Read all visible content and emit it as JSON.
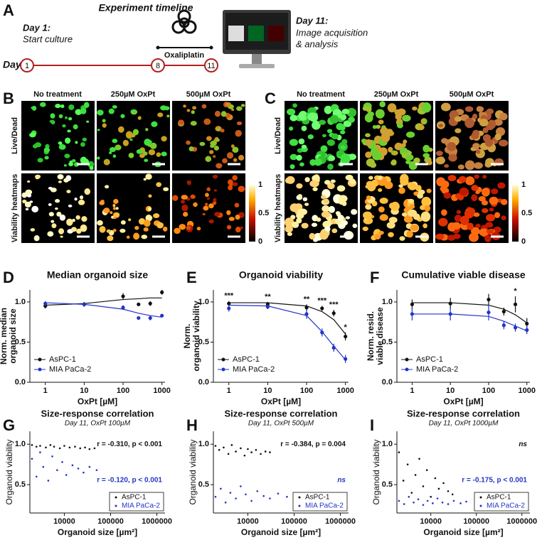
{
  "panel_labels": [
    "A",
    "B",
    "C",
    "D",
    "E",
    "F",
    "G",
    "H",
    "I"
  ],
  "timeline": {
    "title": "Experiment timeline",
    "day_label": "Day",
    "start_heading": "Day 1:",
    "start_text": "Start culture",
    "end_heading": "Day 11:",
    "end_text": [
      "Image acquisition",
      "& analysis"
    ],
    "days": [
      1,
      8,
      11
    ],
    "treatment": "Oxaliplatin"
  },
  "microscopy": [
    {
      "columns": [
        "No treatment",
        "250µM OxPt",
        "500µM OxPt"
      ],
      "rows": [
        "Live/Dead",
        "Viability heatmaps"
      ],
      "colorbar_ticks": [
        0,
        0.5,
        1
      ]
    },
    {
      "columns": [
        "No treatment",
        "250µM OxPt",
        "500µM OxPt"
      ],
      "rows": [
        "Live/Dead",
        "Viability heatmaps"
      ],
      "colorbar_ticks": [
        0,
        0.5,
        1
      ]
    }
  ],
  "chart_data": [
    {
      "type": "dose-response",
      "title": "Median organoid size",
      "xlabel": "OxPt [µM]",
      "ylabel": [
        "Norm. median",
        "organoid size"
      ],
      "x": [
        1,
        10,
        100,
        250,
        500,
        1000
      ],
      "xlog": true,
      "xlim": [
        0.4,
        1200
      ],
      "xticks": [
        1,
        10,
        100,
        1000
      ],
      "ylim": [
        0,
        1.15
      ],
      "yticks": [
        {
          "value": 0,
          "label": "0.0"
        },
        {
          "value": 0.5,
          "label": "0.5"
        },
        {
          "value": 1,
          "label": "1.0"
        }
      ],
      "legend": "lower left",
      "series": [
        {
          "name": "AsPC-1",
          "color": "#111111",
          "values": [
            0.95,
            0.97,
            1.07,
            0.97,
            0.98,
            1.12
          ],
          "errors": [
            0.03,
            0.03,
            0.04,
            0.02,
            0.03,
            0.03
          ],
          "fit": [
            0.96,
            0.98,
            1.03,
            1.04,
            1.05,
            1.05
          ]
        },
        {
          "name": "MIA PaCa-2",
          "color": "#2134c8",
          "values": [
            0.98,
            0.97,
            0.93,
            0.8,
            0.8,
            0.83
          ],
          "errors": [
            0.03,
            0.03,
            0.03,
            0.02,
            0.03,
            0.02
          ],
          "fit": [
            0.99,
            0.97,
            0.91,
            0.86,
            0.83,
            0.81
          ]
        }
      ],
      "significance": []
    },
    {
      "type": "dose-response",
      "title": "Organoid viability",
      "xlabel": "OxPt [µM]",
      "ylabel": [
        "Norm.",
        "organoid viability"
      ],
      "x": [
        1,
        10,
        100,
        250,
        500,
        1000
      ],
      "xlog": true,
      "xlim": [
        0.4,
        1200
      ],
      "xticks": [
        1,
        10,
        100,
        1000
      ],
      "ylim": [
        0,
        1.15
      ],
      "yticks": [
        {
          "value": 0,
          "label": "0.0"
        },
        {
          "value": 0.5,
          "label": "0.5"
        },
        {
          "value": 1,
          "label": "1.0"
        }
      ],
      "legend": "lower left",
      "series": [
        {
          "name": "AsPC-1",
          "color": "#111111",
          "values": [
            0.98,
            0.97,
            0.93,
            0.92,
            0.86,
            0.57
          ],
          "errors": [
            0.03,
            0.03,
            0.04,
            0.03,
            0.04,
            0.05
          ],
          "fit": [
            0.99,
            0.99,
            0.95,
            0.88,
            0.78,
            0.6
          ]
        },
        {
          "name": "MIA PaCa-2",
          "color": "#2134c8",
          "values": [
            0.92,
            0.94,
            0.85,
            0.62,
            0.43,
            0.29
          ],
          "errors": [
            0.04,
            0.03,
            0.06,
            0.05,
            0.05,
            0.05
          ],
          "fit": [
            0.96,
            0.95,
            0.83,
            0.63,
            0.45,
            0.28
          ]
        }
      ],
      "significance": [
        {
          "x": 1,
          "label": "***"
        },
        {
          "x": 10,
          "label": "**"
        },
        {
          "x": 100,
          "label": "**"
        },
        {
          "x": 250,
          "label": "***"
        },
        {
          "x": 500,
          "label": "***"
        },
        {
          "x": 1000,
          "label": "*"
        }
      ]
    },
    {
      "type": "dose-response",
      "title": "Cumulative viable disease",
      "xlabel": "OxPt [µM]",
      "ylabel": [
        "Norm. resid.",
        "viable disease"
      ],
      "x": [
        1,
        10,
        100,
        250,
        500,
        1000
      ],
      "xlog": true,
      "xlim": [
        0.4,
        1200
      ],
      "xticks": [
        1,
        10,
        100,
        1000
      ],
      "ylim": [
        0,
        1.15
      ],
      "yticks": [
        {
          "value": 0,
          "label": "0.0"
        },
        {
          "value": 0.5,
          "label": "0.5"
        },
        {
          "value": 1,
          "label": "1.0"
        }
      ],
      "legend": "lower left",
      "series": [
        {
          "name": "AsPC-1",
          "color": "#111111",
          "values": [
            0.97,
            0.98,
            1.03,
            0.88,
            0.97,
            0.73
          ],
          "errors": [
            0.06,
            0.07,
            0.07,
            0.05,
            0.1,
            0.07
          ],
          "fit": [
            0.99,
            0.99,
            0.96,
            0.91,
            0.84,
            0.74
          ]
        },
        {
          "name": "MIA PaCa-2",
          "color": "#2134c8",
          "values": [
            0.85,
            0.85,
            0.87,
            0.71,
            0.68,
            0.65
          ],
          "errors": [
            0.08,
            0.08,
            0.1,
            0.05,
            0.05,
            0.05
          ],
          "fit": [
            0.85,
            0.85,
            0.82,
            0.76,
            0.7,
            0.64
          ]
        }
      ],
      "significance": [
        {
          "x": 500,
          "label": "*"
        }
      ]
    },
    {
      "type": "scatter",
      "title": "Size-response correlation",
      "subtitle": "Day 11, OxPt 100µM",
      "xlabel": "Organoid size [µm²]",
      "ylabel": "Organoid viability",
      "xlog": true,
      "xlim": [
        1800,
        1500000
      ],
      "xticks": [
        10000,
        100000,
        1000000
      ],
      "ylim": [
        0.15,
        1.16
      ],
      "yticks": [
        0.5,
        {
          "value": 1,
          "label": "1.0"
        }
      ],
      "legend": "lower right",
      "series": [
        {
          "name": "AsPC-1",
          "color": "#111111",
          "x": [
            2000,
            2500,
            3000,
            4000,
            5000,
            6000,
            8000,
            10000,
            13000,
            17000,
            22000,
            28000,
            35000,
            45000
          ],
          "values": [
            0.99,
            0.97,
            0.98,
            0.96,
            0.99,
            0.97,
            0.95,
            0.98,
            0.96,
            0.97,
            0.95,
            0.96,
            0.94,
            0.95
          ]
        },
        {
          "name": "MIA PaCa-2",
          "color": "#2134c8",
          "x": [
            2000,
            2500,
            3000,
            3500,
            4500,
            5500,
            7000,
            9000,
            11000,
            15000,
            20000,
            26000,
            35000,
            50000
          ],
          "values": [
            0.82,
            0.6,
            0.9,
            0.72,
            0.55,
            0.85,
            0.68,
            0.78,
            0.62,
            0.74,
            0.7,
            0.65,
            0.72,
            0.68
          ]
        }
      ],
      "annotations": [
        {
          "text": "r = -0.310, p < 0.001",
          "color": "#111111",
          "italic": false
        },
        {
          "text": "r = -0.120, p < 0.001",
          "color": "#2134c8",
          "italic": false
        }
      ]
    },
    {
      "type": "scatter",
      "title": "Size-response correlation",
      "subtitle": "Day 11, OxPt 500µM",
      "xlabel": "Organoid size [µm²]",
      "ylabel": "Organoid viability",
      "xlog": true,
      "xlim": [
        1800,
        1500000
      ],
      "xticks": [
        10000,
        100000,
        1000000
      ],
      "ylim": [
        0.15,
        1.16
      ],
      "yticks": [
        0.5,
        {
          "value": 1,
          "label": "1.0"
        }
      ],
      "legend": "lower right",
      "series": [
        {
          "name": "AsPC-1",
          "color": "#111111",
          "x": [
            2000,
            2400,
            3000,
            3800,
            4500,
            5500,
            7000,
            8500,
            10000,
            12000,
            15000,
            19000,
            24000,
            30000
          ],
          "values": [
            0.98,
            0.93,
            0.96,
            0.88,
            0.99,
            0.91,
            0.95,
            0.86,
            0.94,
            0.9,
            0.93,
            0.88,
            0.91,
            0.9
          ]
        },
        {
          "name": "MIA PaCa-2",
          "color": "#2134c8",
          "x": [
            2000,
            2600,
            3300,
            4200,
            5500,
            7000,
            9000,
            12000,
            16000,
            22000,
            30000,
            45000,
            70000,
            150000
          ],
          "values": [
            0.35,
            0.45,
            0.28,
            0.4,
            0.33,
            0.48,
            0.38,
            0.3,
            0.42,
            0.36,
            0.33,
            0.39,
            0.35,
            0.37
          ]
        }
      ],
      "annotations": [
        {
          "text": "r = -0.384, p = 0.004",
          "color": "#111111",
          "italic": false
        },
        {
          "text": "ns",
          "color": "#2134c8",
          "italic": true
        }
      ]
    },
    {
      "type": "scatter",
      "title": "Size-response correlation",
      "subtitle": "Day 11, OxPt 1000µM",
      "xlabel": "Organoid size [µm²]",
      "ylabel": "Organoid viability",
      "xlog": true,
      "xlim": [
        1800,
        1500000
      ],
      "xticks": [
        10000,
        100000,
        1000000
      ],
      "ylim": [
        0.15,
        1.16
      ],
      "yticks": [
        0.5,
        {
          "value": 1,
          "label": "1.0"
        }
      ],
      "legend": "lower right",
      "series": [
        {
          "name": "AsPC-1",
          "color": "#111111",
          "x": [
            2000,
            2500,
            3100,
            3800,
            4600,
            5600,
            6800,
            8200,
            10000,
            12500,
            15000,
            19000,
            24000,
            30000
          ],
          "values": [
            0.9,
            0.55,
            0.75,
            0.4,
            0.62,
            0.82,
            0.48,
            0.68,
            0.35,
            0.58,
            0.45,
            0.52,
            0.42,
            0.38
          ]
        },
        {
          "name": "MIA PaCa-2",
          "color": "#2134c8",
          "x": [
            2000,
            2600,
            3300,
            4200,
            5300,
            6800,
            8500,
            11000,
            14000,
            18000,
            24000,
            32000,
            45000,
            60000
          ],
          "values": [
            0.3,
            0.26,
            0.35,
            0.28,
            0.32,
            0.25,
            0.3,
            0.27,
            0.33,
            0.28,
            0.26,
            0.3,
            0.27,
            0.29
          ]
        }
      ],
      "annotations": [
        {
          "text": "ns",
          "color": "#111111",
          "italic": true
        },
        {
          "text": "r = -0.175, p < 0.001",
          "color": "#2134c8",
          "italic": false
        }
      ]
    }
  ]
}
